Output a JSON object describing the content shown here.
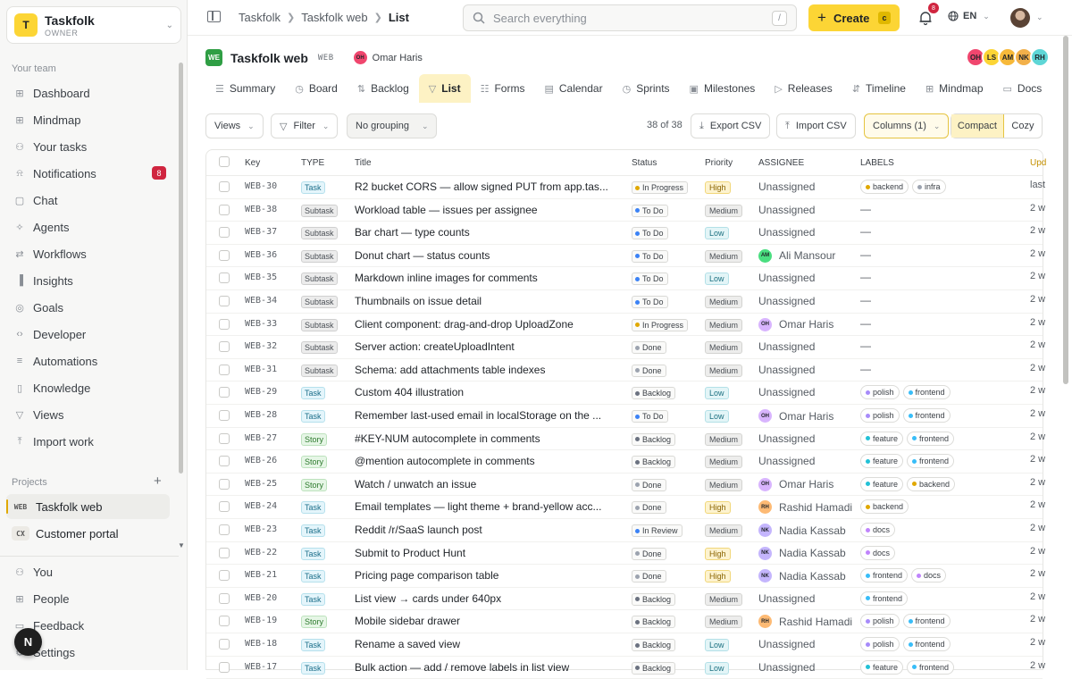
{
  "workspace": {
    "logo": "T",
    "name": "Taskfolk",
    "role": "OWNER"
  },
  "sidebar": {
    "team_label": "Your team",
    "items": [
      {
        "label": "Dashboard",
        "icon": "grid-icon"
      },
      {
        "label": "Mindmap",
        "icon": "mindmap-icon"
      },
      {
        "label": "Your tasks",
        "icon": "user-icon"
      },
      {
        "label": "Notifications",
        "icon": "bell-icon",
        "badge": "8"
      },
      {
        "label": "Chat",
        "icon": "chat-icon"
      },
      {
        "label": "Agents",
        "icon": "sparkle-icon"
      },
      {
        "label": "Workflows",
        "icon": "workflow-icon"
      },
      {
        "label": "Insights",
        "icon": "chart-icon"
      },
      {
        "label": "Goals",
        "icon": "target-icon"
      },
      {
        "label": "Developer",
        "icon": "code-icon"
      },
      {
        "label": "Automations",
        "icon": "sliders-icon"
      },
      {
        "label": "Knowledge",
        "icon": "book-icon"
      },
      {
        "label": "Views",
        "icon": "filter-icon"
      },
      {
        "label": "Import work",
        "icon": "import-icon"
      }
    ],
    "projects_label": "Projects",
    "projects": [
      {
        "key": "WEB",
        "name": "Taskfolk web",
        "active": true
      },
      {
        "key": "CX",
        "name": "Customer portal",
        "active": false
      }
    ],
    "bottom": [
      {
        "label": "You",
        "icon": "user-icon"
      },
      {
        "label": "People",
        "icon": "people-icon"
      },
      {
        "label": "Feedback",
        "icon": "feedback-icon"
      },
      {
        "label": "Settings",
        "icon": "gear-icon"
      }
    ],
    "fab": "N"
  },
  "topbar": {
    "breadcrumb": [
      "Taskfolk",
      "Taskfolk web",
      "List"
    ],
    "search_placeholder": "Search everything",
    "search_kbd": "/",
    "create_label": "Create",
    "create_kbd": "c",
    "notif_count": "8",
    "lang": "EN"
  },
  "project": {
    "logo": "WE",
    "name": "Taskfolk web",
    "key": "WEB",
    "owner": {
      "initials": "OH",
      "name": "Omar Haris"
    },
    "team": [
      {
        "initials": "OH",
        "color": "#f0466e"
      },
      {
        "initials": "LS",
        "color": "#fcd535"
      },
      {
        "initials": "AM",
        "color": "#f7b93a"
      },
      {
        "initials": "NK",
        "color": "#f2b04a"
      },
      {
        "initials": "RH",
        "color": "#5ed6d6"
      }
    ]
  },
  "tabs": [
    {
      "label": "Summary",
      "icon": "summary-icon"
    },
    {
      "label": "Board",
      "icon": "board-icon"
    },
    {
      "label": "Backlog",
      "icon": "backlog-icon"
    },
    {
      "label": "List",
      "icon": "filter-icon",
      "active": true
    },
    {
      "label": "Forms",
      "icon": "forms-icon"
    },
    {
      "label": "Calendar",
      "icon": "calendar-icon"
    },
    {
      "label": "Sprints",
      "icon": "sprint-icon"
    },
    {
      "label": "Milestones",
      "icon": "milestone-icon"
    },
    {
      "label": "Releases",
      "icon": "release-icon"
    },
    {
      "label": "Timeline",
      "icon": "timeline-icon"
    },
    {
      "label": "Mindmap",
      "icon": "mindmap-icon"
    },
    {
      "label": "Docs",
      "icon": "docs-icon"
    }
  ],
  "toolbar": {
    "views": "Views",
    "filter": "Filter",
    "grouping": "No grouping",
    "count": "38 of 38",
    "export": "Export CSV",
    "import": "Import CSV",
    "columns": "Columns (1)",
    "compact": "Compact",
    "cozy": "Cozy"
  },
  "table": {
    "headers": [
      "Key",
      "TYPE",
      "Title",
      "Status",
      "Priority",
      "ASSIGNEE",
      "LABELS",
      "Upd"
    ],
    "rows": [
      {
        "key": "WEB-30",
        "type": "Task",
        "title": "R2 bucket CORS — allow signed PUT from app.tas...",
        "status": "In Progress",
        "priority": "High",
        "assignee": "Unassigned",
        "labels": [
          "backend",
          "infra"
        ],
        "updated": "last"
      },
      {
        "key": "WEB-38",
        "type": "Subtask",
        "title": "Workload table — issues per assignee",
        "status": "To Do",
        "priority": "Medium",
        "assignee": "Unassigned",
        "labels": [],
        "updated": "2 w"
      },
      {
        "key": "WEB-37",
        "type": "Subtask",
        "title": "Bar chart — type counts",
        "status": "To Do",
        "priority": "Low",
        "assignee": "Unassigned",
        "labels": [],
        "updated": "2 w"
      },
      {
        "key": "WEB-36",
        "type": "Subtask",
        "title": "Donut chart — status counts",
        "status": "To Do",
        "priority": "Medium",
        "assignee": "Ali Mansour",
        "av": "AM",
        "labels": [],
        "updated": "2 w"
      },
      {
        "key": "WEB-35",
        "type": "Subtask",
        "title": "Markdown inline images for comments",
        "status": "To Do",
        "priority": "Low",
        "assignee": "Unassigned",
        "labels": [],
        "updated": "2 w"
      },
      {
        "key": "WEB-34",
        "type": "Subtask",
        "title": "Thumbnails on issue detail",
        "status": "To Do",
        "priority": "Medium",
        "assignee": "Unassigned",
        "labels": [],
        "updated": "2 w"
      },
      {
        "key": "WEB-33",
        "type": "Subtask",
        "title": "Client component: drag-and-drop UploadZone",
        "status": "In Progress",
        "priority": "Medium",
        "assignee": "Omar Haris",
        "av": "OH",
        "labels": [],
        "updated": "2 w"
      },
      {
        "key": "WEB-32",
        "type": "Subtask",
        "title": "Server action: createUploadIntent",
        "status": "Done",
        "priority": "Medium",
        "assignee": "Unassigned",
        "labels": [],
        "updated": "2 w"
      },
      {
        "key": "WEB-31",
        "type": "Subtask",
        "title": "Schema: add attachments table indexes",
        "status": "Done",
        "priority": "Medium",
        "assignee": "Unassigned",
        "labels": [],
        "updated": "2 w"
      },
      {
        "key": "WEB-29",
        "type": "Task",
        "title": "Custom 404 illustration",
        "status": "Backlog",
        "priority": "Low",
        "assignee": "Unassigned",
        "labels": [
          "polish",
          "frontend"
        ],
        "updated": "2 w"
      },
      {
        "key": "WEB-28",
        "type": "Task",
        "title": "Remember last-used email in localStorage on the ...",
        "status": "To Do",
        "priority": "Low",
        "assignee": "Omar Haris",
        "av": "OH",
        "labels": [
          "polish",
          "frontend"
        ],
        "updated": "2 w"
      },
      {
        "key": "WEB-27",
        "type": "Story",
        "title": "#KEY-NUM autocomplete in comments",
        "status": "Backlog",
        "priority": "Medium",
        "assignee": "Unassigned",
        "labels": [
          "feature",
          "frontend"
        ],
        "updated": "2 w"
      },
      {
        "key": "WEB-26",
        "type": "Story",
        "title": "@mention autocomplete in comments",
        "status": "Backlog",
        "priority": "Medium",
        "assignee": "Unassigned",
        "labels": [
          "feature",
          "frontend"
        ],
        "updated": "2 w"
      },
      {
        "key": "WEB-25",
        "type": "Story",
        "title": "Watch / unwatch an issue",
        "status": "Done",
        "priority": "Medium",
        "assignee": "Omar Haris",
        "av": "OH",
        "labels": [
          "feature",
          "backend"
        ],
        "updated": "2 w"
      },
      {
        "key": "WEB-24",
        "type": "Task",
        "title": "Email templates — light theme + brand-yellow acc...",
        "status": "Done",
        "priority": "High",
        "assignee": "Rashid Hamadi",
        "av": "RH",
        "labels": [
          "backend"
        ],
        "updated": "2 w"
      },
      {
        "key": "WEB-23",
        "type": "Task",
        "title": "Reddit /r/SaaS launch post",
        "status": "In Review",
        "priority": "Medium",
        "assignee": "Nadia Kassab",
        "av": "NK",
        "labels": [
          "docs"
        ],
        "updated": "2 w"
      },
      {
        "key": "WEB-22",
        "type": "Task",
        "title": "Submit to Product Hunt",
        "status": "Done",
        "priority": "High",
        "assignee": "Nadia Kassab",
        "av": "NK",
        "labels": [
          "docs"
        ],
        "updated": "2 w"
      },
      {
        "key": "WEB-21",
        "type": "Task",
        "title": "Pricing page comparison table",
        "status": "Done",
        "priority": "High",
        "assignee": "Nadia Kassab",
        "av": "NK",
        "labels": [
          "frontend",
          "docs"
        ],
        "updated": "2 w"
      },
      {
        "key": "WEB-20",
        "type": "Task",
        "title": "List view → cards under 640px",
        "status": "Backlog",
        "priority": "Medium",
        "assignee": "Unassigned",
        "labels": [
          "frontend"
        ],
        "updated": "2 w"
      },
      {
        "key": "WEB-19",
        "type": "Story",
        "title": "Mobile sidebar drawer",
        "status": "Backlog",
        "priority": "Medium",
        "assignee": "Rashid Hamadi",
        "av": "RH",
        "labels": [
          "polish",
          "frontend"
        ],
        "updated": "2 w"
      },
      {
        "key": "WEB-18",
        "type": "Task",
        "title": "Rename a saved view",
        "status": "Backlog",
        "priority": "Low",
        "assignee": "Unassigned",
        "labels": [
          "polish",
          "frontend"
        ],
        "updated": "2 w"
      },
      {
        "key": "WEB-17",
        "type": "Task",
        "title": "Bulk action — add / remove labels in list view",
        "status": "Backlog",
        "priority": "Low",
        "assignee": "Unassigned",
        "labels": [
          "feature",
          "frontend"
        ],
        "updated": "2 w"
      }
    ]
  },
  "colors": {
    "accent": "#fcd535",
    "status": {
      "In Progress": "#e0a800",
      "To Do": "#3b82f6",
      "Done": "#9ca3af",
      "Backlog": "#6b7280",
      "In Review": "#3b82f6"
    },
    "labels": {
      "backend": "#e0a800",
      "infra": "#9ca3af",
      "polish": "#a78bfa",
      "frontend": "#38bdf8",
      "feature": "#22c1d6",
      "docs": "#c084fc"
    },
    "avatars": {
      "AM": "#4ade80",
      "OH": "#d8b4fe",
      "RH": "#fdba74",
      "NK": "#c4b5fd"
    }
  }
}
